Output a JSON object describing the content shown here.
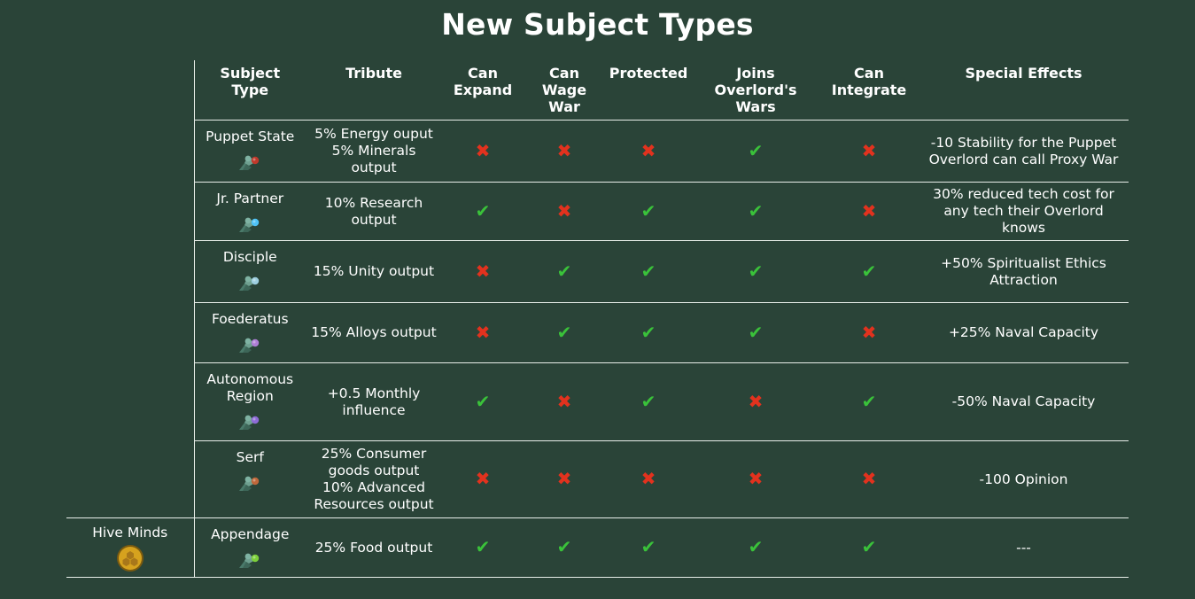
{
  "title": "New Subject Types",
  "headers": {
    "subject_type": [
      "Subject",
      "Type"
    ],
    "tribute": [
      "Tribute"
    ],
    "can_expand": [
      "Can",
      "Expand"
    ],
    "can_wage_war": [
      "Can",
      "Wage",
      "War"
    ],
    "protected": [
      "Protected"
    ],
    "joins_wars": [
      "Joins",
      "Overlord's",
      "Wars"
    ],
    "can_integrate": [
      "Can",
      "Integrate"
    ],
    "special_effects": [
      "Special Effects"
    ]
  },
  "group": {
    "label": "Hive Minds",
    "icon": "hive-mind-icon",
    "icon_color": "#d6a21e"
  },
  "colors": {
    "yes": "#3ac23a",
    "no": "#e2321e",
    "background": "#2a4438"
  },
  "rows": [
    {
      "subject": "Puppet State",
      "icon": "puppet-subject-icon",
      "icon_color": "#c0392b",
      "tribute": [
        "5% Energy ouput",
        "5% Minerals",
        "output"
      ],
      "can_expand": false,
      "can_wage_war": false,
      "protected": false,
      "joins_wars": true,
      "can_integrate": false,
      "special": [
        "-10 Stability for the Puppet",
        "Overlord can call Proxy War"
      ]
    },
    {
      "subject": "Jr. Partner",
      "icon": "partner-subject-icon",
      "icon_color": "#4fc3f7",
      "tribute": [
        "10% Research",
        "output"
      ],
      "can_expand": true,
      "can_wage_war": false,
      "protected": true,
      "joins_wars": true,
      "can_integrate": false,
      "special": [
        "30% reduced tech cost for",
        "any tech their Overlord",
        "knows"
      ]
    },
    {
      "subject": "Disciple",
      "icon": "disciple-subject-icon",
      "icon_color": "#9ecfe0",
      "tribute": [
        "15% Unity output"
      ],
      "can_expand": false,
      "can_wage_war": true,
      "protected": true,
      "joins_wars": true,
      "can_integrate": true,
      "special": [
        "+50% Spiritualist Ethics",
        "Attraction"
      ]
    },
    {
      "subject": "Foederatus",
      "icon": "foederatus-subject-icon",
      "icon_color": "#b07fd6",
      "tribute": [
        "15% Alloys output"
      ],
      "can_expand": false,
      "can_wage_war": true,
      "protected": true,
      "joins_wars": true,
      "can_integrate": false,
      "special": [
        "+25% Naval Capacity"
      ]
    },
    {
      "subject": "Autonomous Region",
      "subject_lines": [
        "Autonomous",
        "Region"
      ],
      "icon": "autonomous-subject-icon",
      "icon_color": "#8e6bd6",
      "tribute": [
        "+0.5 Monthly",
        "influence"
      ],
      "can_expand": true,
      "can_wage_war": false,
      "protected": true,
      "joins_wars": false,
      "can_integrate": true,
      "special": [
        "-50% Naval Capacity"
      ]
    },
    {
      "subject": "Serf",
      "icon": "serf-subject-icon",
      "icon_color": "#c0683b",
      "tribute": [
        "25% Consumer",
        "goods output",
        "10% Advanced",
        "Resources output"
      ],
      "can_expand": false,
      "can_wage_war": false,
      "protected": false,
      "joins_wars": false,
      "can_integrate": false,
      "special": [
        "-100 Opinion"
      ]
    },
    {
      "subject": "Appendage",
      "icon": "appendage-subject-icon",
      "icon_color": "#7ccf3a",
      "tribute": [
        "25% Food output"
      ],
      "can_expand": true,
      "can_wage_war": true,
      "protected": true,
      "joins_wars": true,
      "can_integrate": true,
      "special": [
        "---"
      ]
    }
  ]
}
